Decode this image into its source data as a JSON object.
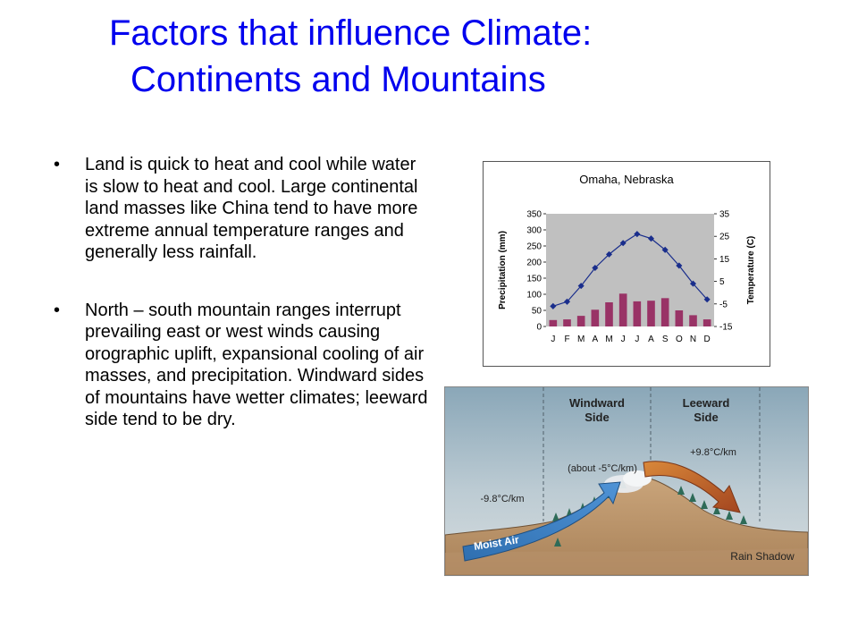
{
  "slide": {
    "title_line1": "Factors that influence Climate:",
    "title_line2": "Continents and Mountains",
    "bullet_symbol": "•",
    "bullets": [
      "Land is quick to heat and cool while water is slow to heat and cool. Large continental land masses like China tend to have more extreme annual temperature ranges and generally less rainfall.",
      "North – south mountain ranges interrupt prevailing east or west winds causing orographic uplift, expansional cooling of air masses, and precipitation. Windward sides of mountains have wetter climates; leeward side tend to be dry."
    ]
  },
  "chart_data": {
    "type": "bar",
    "title": "Omaha, Nebraska",
    "categories": [
      "J",
      "F",
      "M",
      "A",
      "M",
      "J",
      "J",
      "A",
      "S",
      "O",
      "N",
      "D"
    ],
    "series": [
      {
        "kind": "bar",
        "values": [
          20,
          22,
          33,
          52,
          75,
          102,
          78,
          80,
          88,
          50,
          35,
          22
        ]
      },
      {
        "kind": "line",
        "values": [
          -6,
          -4,
          3,
          11,
          17,
          22,
          26,
          24,
          19,
          12,
          4,
          -3
        ]
      }
    ],
    "ylabel": "Precipitation (mm)",
    "ylabel_right": "Temperature (C)",
    "ylim": [
      0,
      350
    ],
    "ylim_right": [
      -15,
      35
    ],
    "yticks": [
      "350",
      "300",
      "250",
      "200",
      "150",
      "100",
      "50",
      "0"
    ],
    "yticks_right": [
      "35",
      "25",
      "15",
      "5",
      "-5",
      "-15"
    ],
    "grid": false,
    "colors": {
      "bar": "#993366",
      "line": "#1a2e8c",
      "plot_bg": "#c0c0c0"
    }
  },
  "mountain": {
    "windward_line1": "Windward",
    "windward_line2": "Side",
    "leeward_line1": "Leeward",
    "leeward_line2": "Side",
    "lapse_leeward": "+9.8°C/km",
    "lapse_cloud": "(about -5°C/km)",
    "lapse_windward": "-9.8°C/km",
    "moist_air": "Moist Air",
    "rain_shadow": "Rain Shadow"
  }
}
